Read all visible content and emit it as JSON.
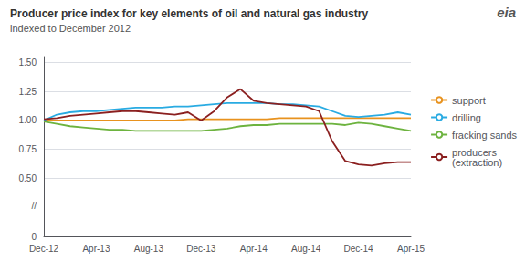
{
  "chart_data": {
    "type": "line",
    "title": "Producer price index for key elements of oil and natural gas industry",
    "subtitle": "indexed to December 2012",
    "categories": [
      "Dec-12",
      null,
      null,
      null,
      "Apr-13",
      null,
      null,
      null,
      "Aug-13",
      null,
      null,
      null,
      "Dec-13",
      null,
      null,
      null,
      "Apr-14",
      null,
      null,
      null,
      "Aug-14",
      null,
      null,
      null,
      "Dec-14",
      null,
      null,
      null,
      "Apr-15"
    ],
    "series": [
      {
        "name": "support",
        "color": "#e8921e",
        "values": [
          1.0,
          1.0,
          1.0,
          1.0,
          1.0,
          1.0,
          1.0,
          1.0,
          1.0,
          1.0,
          1.0,
          1.01,
          1.01,
          1.01,
          1.01,
          1.01,
          1.01,
          1.01,
          1.02,
          1.02,
          1.02,
          1.02,
          1.02,
          1.02,
          1.02,
          1.02,
          1.02,
          1.02,
          1.02
        ]
      },
      {
        "name": "drilling",
        "color": "#29abe2",
        "values": [
          1.0,
          1.05,
          1.07,
          1.08,
          1.08,
          1.09,
          1.1,
          1.11,
          1.11,
          1.11,
          1.12,
          1.12,
          1.13,
          1.14,
          1.15,
          1.15,
          1.15,
          1.15,
          1.14,
          1.14,
          1.13,
          1.12,
          1.08,
          1.04,
          1.03,
          1.04,
          1.05,
          1.07,
          1.05
        ]
      },
      {
        "name": "fracking sands",
        "color": "#6db33f",
        "values": [
          0.99,
          0.97,
          0.95,
          0.94,
          0.93,
          0.92,
          0.92,
          0.91,
          0.91,
          0.91,
          0.91,
          0.91,
          0.91,
          0.92,
          0.93,
          0.95,
          0.96,
          0.96,
          0.97,
          0.97,
          0.97,
          0.97,
          0.97,
          0.96,
          0.98,
          0.97,
          0.95,
          0.93,
          0.91
        ]
      },
      {
        "name": "producers\n(extraction)",
        "color": "#8b2020",
        "values": [
          1.01,
          1.02,
          1.04,
          1.05,
          1.06,
          1.07,
          1.08,
          1.08,
          1.07,
          1.06,
          1.05,
          1.07,
          1.0,
          1.08,
          1.2,
          1.27,
          1.17,
          1.15,
          1.14,
          1.13,
          1.12,
          1.08,
          0.82,
          0.65,
          0.62,
          0.61,
          0.63,
          0.64,
          0.64
        ]
      }
    ],
    "ylim": [
      0,
      1.55
    ],
    "yticks": [
      0,
      {
        "value": 0.5,
        "label": "0.50"
      },
      {
        "value": 0.75,
        "label": "0.75"
      },
      {
        "value": 1,
        "label": "1.00"
      },
      {
        "value": 1.25,
        "label": "1.25"
      },
      {
        "value": 1.5,
        "label": "1.50"
      }
    ],
    "grid": true,
    "legend": "right",
    "annotations": [
      {
        "text": "//",
        "y": 0.26
      },
      {
        "text": "eia"
      }
    ]
  }
}
